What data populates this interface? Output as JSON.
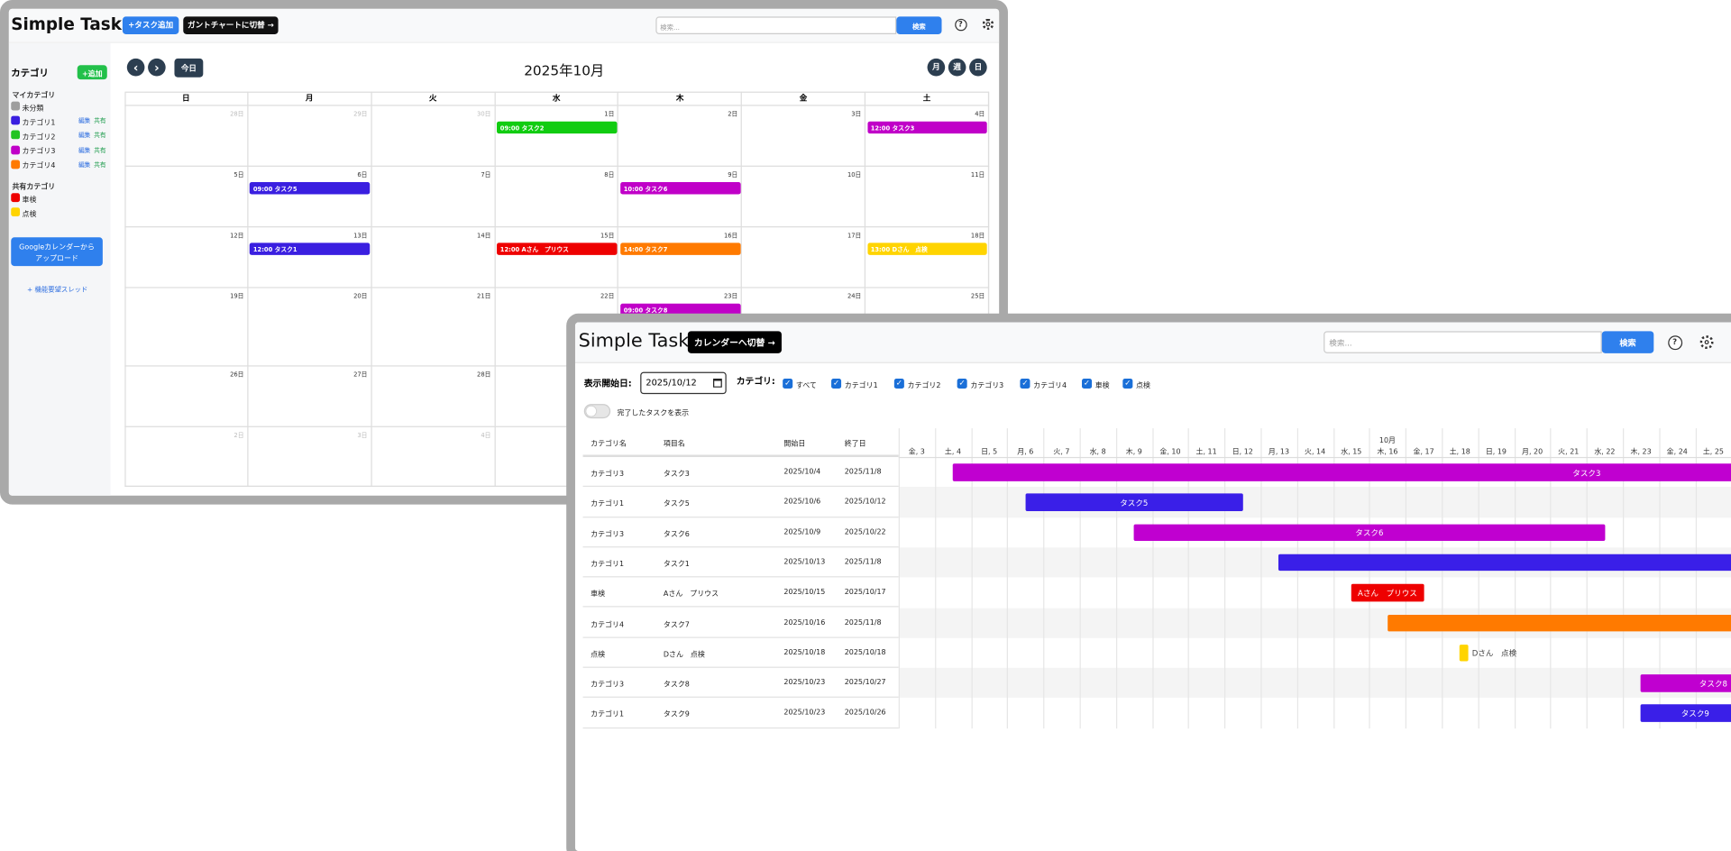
{
  "calendar": {
    "app_title": "Simple Task",
    "add_task_button": "+タスク追加",
    "gantt_switch_button": "ガントチャートに切替 →",
    "search_placeholder": "検索...",
    "search_button": "検索",
    "sidebar": {
      "title": "カテゴリ",
      "add_button": "+追加",
      "my_heading": "マイカテゴリ",
      "categories": [
        {
          "name": "未分類",
          "color": "#9e9e9e"
        },
        {
          "name": "カテゴリ1",
          "color": "#3a1fe0",
          "edit": "編集",
          "share": "共有"
        },
        {
          "name": "カテゴリ2",
          "color": "#22c422",
          "edit": "編集",
          "share": "共有"
        },
        {
          "name": "カテゴリ3",
          "color": "#c000c8",
          "edit": "編集",
          "share": "共有"
        },
        {
          "name": "カテゴリ4",
          "color": "#ff7a00",
          "edit": "編集",
          "share": "共有"
        }
      ],
      "shared_heading": "共有カテゴリ",
      "shared": [
        {
          "name": "車検",
          "color": "#ee0000"
        },
        {
          "name": "点検",
          "color": "#ffd400"
        }
      ],
      "google_button": [
        "Googleカレンダーから",
        "アップロード"
      ],
      "feature_link": "+ 機能要望スレッド"
    },
    "today_button": "今日",
    "month_title": "2025年10月",
    "view_buttons": [
      "月",
      "週",
      "日"
    ],
    "weekdays": [
      "日",
      "月",
      "火",
      "水",
      "木",
      "金",
      "土"
    ],
    "weeks": [
      [
        {
          "day": "28日",
          "outside": true
        },
        {
          "day": "29日",
          "outside": true
        },
        {
          "day": "30日",
          "outside": true
        },
        {
          "day": "1日"
        },
        {
          "day": "2日"
        },
        {
          "day": "3日"
        },
        {
          "day": "4日"
        }
      ],
      [
        {
          "day": "5日"
        },
        {
          "day": "6日"
        },
        {
          "day": "7日"
        },
        {
          "day": "8日"
        },
        {
          "day": "9日"
        },
        {
          "day": "10日"
        },
        {
          "day": "11日"
        }
      ],
      [
        {
          "day": "12日"
        },
        {
          "day": "13日"
        },
        {
          "day": "14日"
        },
        {
          "day": "15日"
        },
        {
          "day": "16日"
        },
        {
          "day": "17日"
        },
        {
          "day": "18日"
        }
      ],
      [
        {
          "day": "19日"
        },
        {
          "day": "20日"
        },
        {
          "day": "21日"
        },
        {
          "day": "22日"
        },
        {
          "day": "23日"
        },
        {
          "day": "24日"
        },
        {
          "day": "25日"
        }
      ],
      [
        {
          "day": "26日"
        },
        {
          "day": "27日"
        },
        {
          "day": "28日"
        }
      ],
      [
        {
          "day": "2日",
          "outside": true
        },
        {
          "day": "3日",
          "outside": true
        },
        {
          "day": "4日",
          "outside": true
        }
      ]
    ],
    "events": [
      {
        "week": 0,
        "day": 3,
        "label": "09:00 タスク2",
        "color": "#11cc11"
      },
      {
        "week": 0,
        "day": 6,
        "label": "12:00 タスク3",
        "color": "#c000c8"
      },
      {
        "week": 1,
        "day": 1,
        "label": "09:00 タスク5",
        "color": "#3a1fe0"
      },
      {
        "week": 1,
        "day": 4,
        "label": "10:00 タスク6",
        "color": "#c000c8"
      },
      {
        "week": 2,
        "day": 1,
        "label": "12:00 タスク1",
        "color": "#3a1fe0"
      },
      {
        "week": 2,
        "day": 3,
        "label": "12:00 Aさん　プリウス",
        "color": "#ee0000"
      },
      {
        "week": 2,
        "day": 4,
        "label": "14:00 タスク7",
        "color": "#ff7a00"
      },
      {
        "week": 2,
        "day": 6,
        "label": "13:00 Dさん　点検",
        "color": "#ffd400"
      },
      {
        "week": 3,
        "day": 4,
        "label": "09:00 タスク8",
        "color": "#c000c8"
      }
    ]
  },
  "gantt": {
    "app_title": "Simple Task",
    "calendar_switch_button": "カレンダーへ切替 →",
    "search_placeholder": "検索...",
    "search_button": "検索",
    "start_label": "表示開始日:",
    "start_date": "2025/10/12",
    "category_label": "カテゴリ:",
    "filters": [
      "すべて",
      "カテゴリ1",
      "カテゴリ2",
      "カテゴリ3",
      "カテゴリ4",
      "車検",
      "点検"
    ],
    "completed_toggle": "完了したタスクを表示",
    "columns": [
      "カテゴリ名",
      "項目名",
      "開始日",
      "終了日"
    ],
    "month": "10月",
    "days": [
      "金, 3",
      "土, 4",
      "日, 5",
      "月, 6",
      "火, 7",
      "水, 8",
      "木, 9",
      "金, 10",
      "土, 11",
      "日, 12",
      "月, 13",
      "火, 14",
      "水, 15",
      "木, 16",
      "金, 17",
      "土, 18",
      "日, 19",
      "月, 20",
      "火, 21",
      "水, 22",
      "木, 23",
      "金, 24",
      "土, 25"
    ],
    "rows": [
      {
        "category": "カテゴリ3",
        "item": "タスク3",
        "start": "2025/10/4",
        "end": "2025/11/8",
        "color": "#c000d0"
      },
      {
        "category": "カテゴリ1",
        "item": "タスク5",
        "start": "2025/10/6",
        "end": "2025/10/12",
        "color": "#3a1fe8"
      },
      {
        "category": "カテゴリ3",
        "item": "タスク6",
        "start": "2025/10/9",
        "end": "2025/10/22",
        "color": "#c000d0"
      },
      {
        "category": "カテゴリ1",
        "item": "タスク1",
        "start": "2025/10/13",
        "end": "2025/11/8",
        "color": "#3a1fe8"
      },
      {
        "category": "車検",
        "item": "Aさん　プリウス",
        "start": "2025/10/15",
        "end": "2025/10/17",
        "color": "#ee0000"
      },
      {
        "category": "カテゴリ4",
        "item": "タスク7",
        "start": "2025/10/16",
        "end": "2025/11/8",
        "color": "#ff7a00"
      },
      {
        "category": "点検",
        "item": "Dさん　点検",
        "start": "2025/10/18",
        "end": "2025/10/18",
        "color": "#ffd400"
      },
      {
        "category": "カテゴリ3",
        "item": "タスク8",
        "start": "2025/10/23",
        "end": "2025/10/27",
        "color": "#c000d0"
      },
      {
        "category": "カテゴリ1",
        "item": "タスク9",
        "start": "2025/10/23",
        "end": "2025/10/26",
        "color": "#3a1fe8"
      }
    ]
  }
}
